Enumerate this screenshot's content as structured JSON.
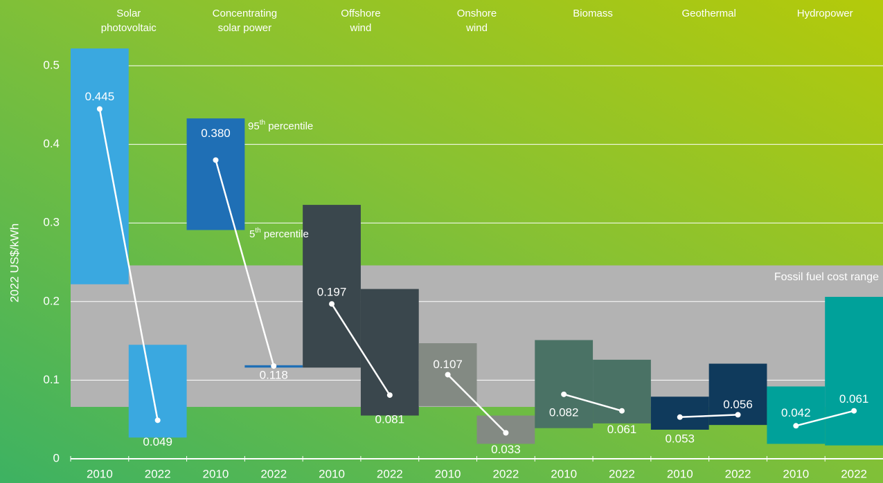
{
  "chart_data": {
    "type": "range_bar",
    "y_axis_label": "2022 US$/kWh",
    "ylim": [
      0,
      0.52
    ],
    "yticks": [
      0,
      0.1,
      0.2,
      0.3,
      0.4,
      0.5
    ],
    "grid": true,
    "band": {
      "label": "Fossil fuel cost range",
      "low": 0.066,
      "high": 0.246,
      "color": "#b3b3b3"
    },
    "annotations": [
      {
        "base": "95",
        "sup": "th",
        "rest": " percentile"
      },
      {
        "base": "5",
        "sup": "th",
        "rest": " percentile"
      }
    ],
    "groups": [
      {
        "name": [
          "Solar",
          "photovoltaic"
        ],
        "color": "#3aa8e0",
        "years": [
          "2010",
          "2022"
        ],
        "low": [
          0.222,
          0.027
        ],
        "high": [
          0.522,
          0.145
        ],
        "values": [
          0.445,
          0.049
        ],
        "value_labels": [
          "0.445",
          "0.049"
        ]
      },
      {
        "name": [
          "Concentrating",
          "solar power"
        ],
        "color": "#1f6fb5",
        "years": [
          "2010",
          "2022"
        ],
        "low": [
          0.291,
          0.116
        ],
        "high": [
          0.433,
          0.119
        ],
        "values": [
          0.38,
          0.118
        ],
        "value_labels": [
          "0.380",
          "0.118"
        ]
      },
      {
        "name": [
          "Offshore",
          "wind"
        ],
        "color": "#3a474d",
        "years": [
          "2010",
          "2022"
        ],
        "low": [
          0.116,
          0.055
        ],
        "high": [
          0.323,
          0.216
        ],
        "values": [
          0.197,
          0.081
        ],
        "value_labels": [
          "0.197",
          "0.081"
        ]
      },
      {
        "name": [
          "Onshore",
          "wind"
        ],
        "color": "#838a83",
        "years": [
          "2010",
          "2022"
        ],
        "low": [
          0.067,
          0.019
        ],
        "high": [
          0.147,
          0.055
        ],
        "values": [
          0.107,
          0.033
        ],
        "value_labels": [
          "0.107",
          "0.033"
        ]
      },
      {
        "name": [
          "Biomass"
        ],
        "color": "#4a7265",
        "years": [
          "2010",
          "2022"
        ],
        "low": [
          0.039,
          0.045
        ],
        "high": [
          0.151,
          0.126
        ],
        "values": [
          0.082,
          0.061
        ],
        "value_labels": [
          "0.082",
          "0.061"
        ]
      },
      {
        "name": [
          "Geothermal"
        ],
        "color": "#0f3a5c",
        "years": [
          "2010",
          "2022"
        ],
        "low": [
          0.037,
          0.043
        ],
        "high": [
          0.079,
          0.121
        ],
        "values": [
          0.053,
          0.056
        ],
        "value_labels": [
          "0.053",
          "0.056"
        ]
      },
      {
        "name": [
          "Hydropower"
        ],
        "color": "#00a19a",
        "years": [
          "2010",
          "2022"
        ],
        "low": [
          0.019,
          0.017
        ],
        "high": [
          0.092,
          0.206
        ],
        "values": [
          0.042,
          0.061
        ],
        "value_labels": [
          "0.042",
          "0.061"
        ]
      }
    ]
  }
}
